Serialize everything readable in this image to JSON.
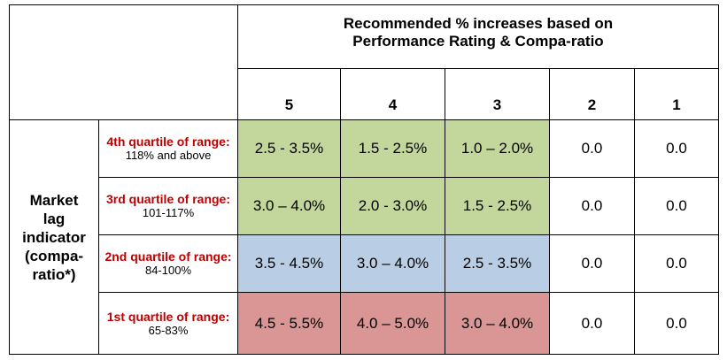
{
  "header": {
    "title_line1": "Recommended % increases based on",
    "title_line2": "Performance Rating & Compa-ratio",
    "ratings": [
      "5",
      "4",
      "3",
      "2",
      "1"
    ]
  },
  "side_label": {
    "line1": "Market",
    "line2": "lag",
    "line3": "indicator",
    "line4": "(compa-",
    "line5": "ratio*)"
  },
  "colors": {
    "green": "#c3d69b",
    "blue": "#b9cde5",
    "red": "#d99694",
    "quartile_label": "#c00000"
  },
  "rows": [
    {
      "quartile": "4th quartile of range:",
      "range": "118% and above",
      "color": "green",
      "values": [
        "2.5 - 3.5%",
        "1.5 - 2.5%",
        "1.0 – 2.0%",
        "0.0",
        "0.0"
      ]
    },
    {
      "quartile": "3rd quartile of range:",
      "range": "101-117%",
      "color": "green",
      "values": [
        "3.0 – 4.0%",
        "2.0 - 3.0%",
        "1.5 - 2.5%",
        "0.0",
        "0.0"
      ]
    },
    {
      "quartile": "2nd quartile of range:",
      "range": "84-100%",
      "color": "blue",
      "values": [
        "3.5 - 4.5%",
        "3.0 – 4.0%",
        "2.5 - 3.5%",
        "0.0",
        "0.0"
      ]
    },
    {
      "quartile": "1st quartile of range:",
      "range": "65-83%",
      "color": "red",
      "values": [
        "4.5 - 5.5%",
        "4.0 – 5.0%",
        "3.0 – 4.0%",
        "0.0",
        "0.0"
      ]
    }
  ]
}
